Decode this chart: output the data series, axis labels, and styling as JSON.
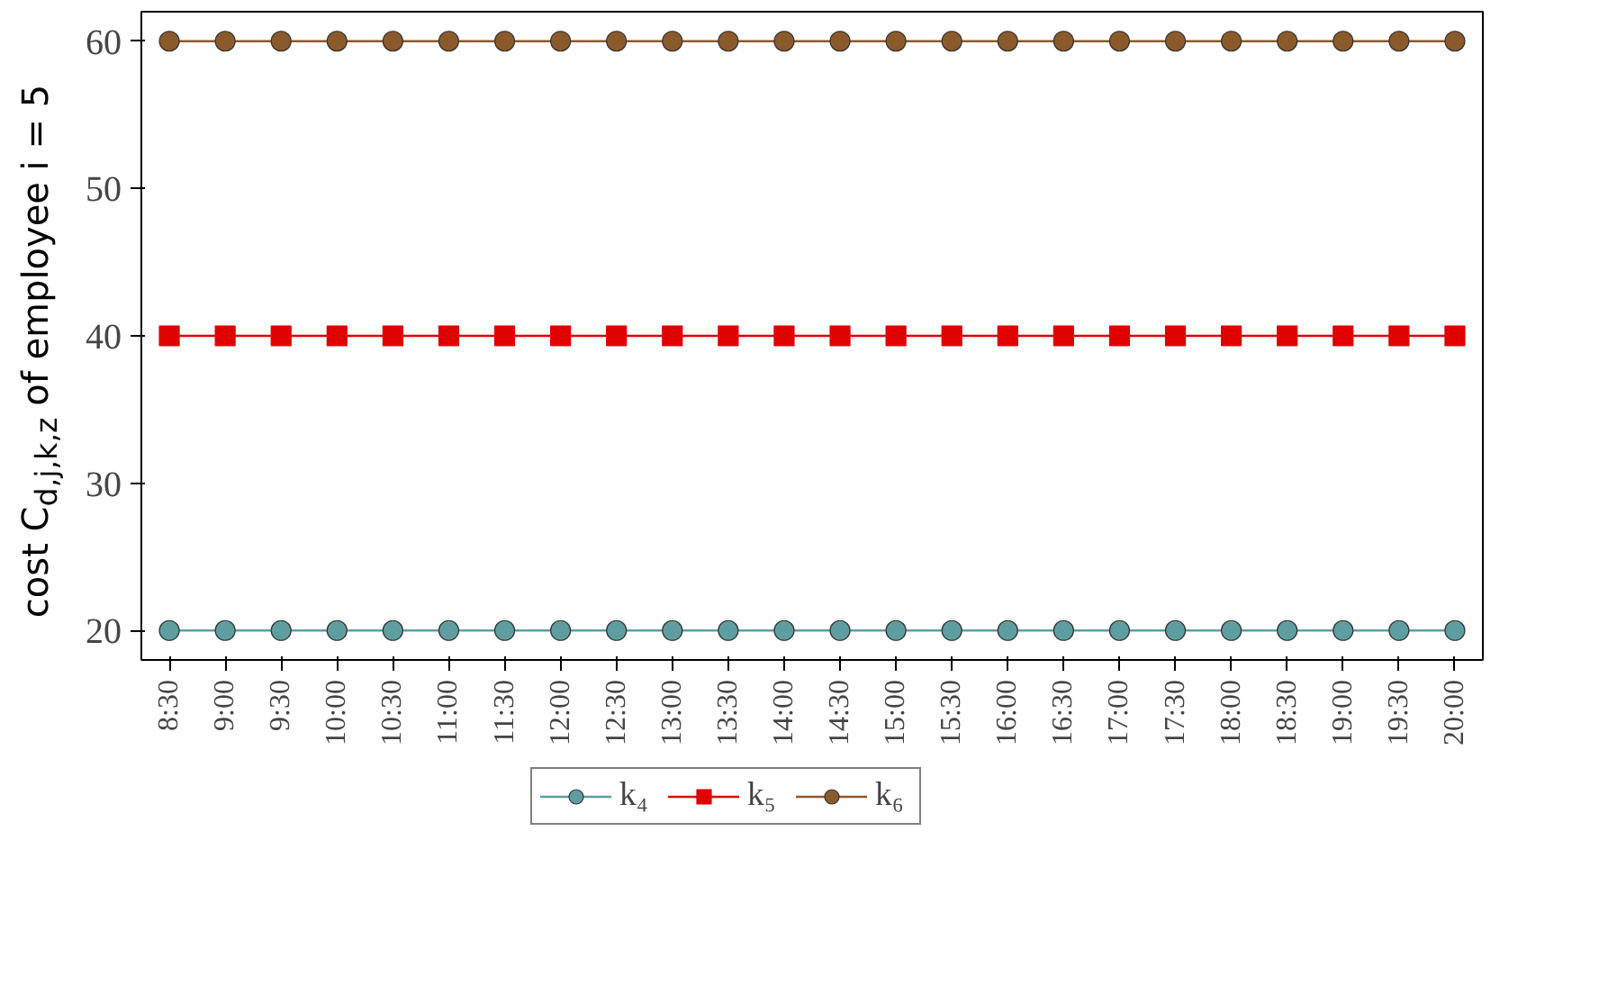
{
  "chart_data": {
    "type": "line",
    "ylabel": "cost C$_{d,j,k,z}$ of employee i = 5",
    "categories": [
      "8:30",
      "9:00",
      "9:30",
      "10:00",
      "10:30",
      "11:00",
      "11:30",
      "12:00",
      "12:30",
      "13:00",
      "13:30",
      "14:00",
      "14:30",
      "15:00",
      "15:30",
      "16:00",
      "16:30",
      "17:00",
      "17:30",
      "18:00",
      "18:30",
      "19:00",
      "19:30",
      "20:00"
    ],
    "series": [
      {
        "name": "k₄",
        "color": "#5f9ea0",
        "marker": "circle",
        "values": [
          20,
          20,
          20,
          20,
          20,
          20,
          20,
          20,
          20,
          20,
          20,
          20,
          20,
          20,
          20,
          20,
          20,
          20,
          20,
          20,
          20,
          20,
          20,
          20
        ]
      },
      {
        "name": "k₅",
        "color": "#e00000",
        "marker": "square",
        "values": [
          40,
          40,
          40,
          40,
          40,
          40,
          40,
          40,
          40,
          40,
          40,
          40,
          40,
          40,
          40,
          40,
          40,
          40,
          40,
          40,
          40,
          40,
          40,
          40
        ]
      },
      {
        "name": "k₆",
        "color": "#8b5a2b",
        "marker": "circle",
        "values": [
          60,
          60,
          60,
          60,
          60,
          60,
          60,
          60,
          60,
          60,
          60,
          60,
          60,
          60,
          60,
          60,
          60,
          60,
          60,
          60,
          60,
          60,
          60,
          60
        ]
      }
    ],
    "ylim": [
      18,
      62
    ],
    "yticks": [
      20,
      30,
      40,
      50,
      60
    ],
    "grid": false,
    "legend": "bottom",
    "line_style": "solid"
  }
}
